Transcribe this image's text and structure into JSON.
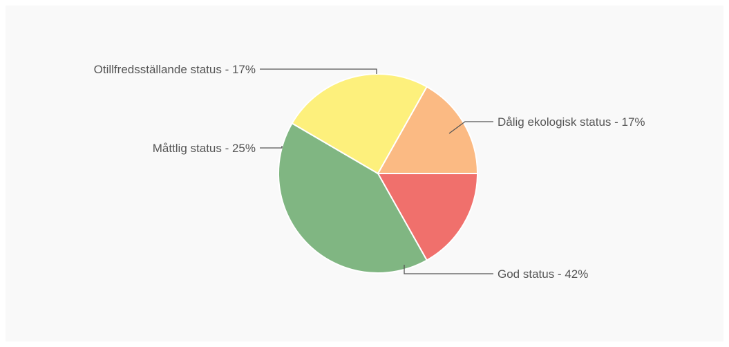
{
  "chart_data": {
    "type": "pie",
    "title": "",
    "slices": [
      {
        "label": "Dålig ekologisk status",
        "value": 17,
        "display": "Dålig ekologisk status - 17%",
        "color": "#f0706c"
      },
      {
        "label": "God status",
        "value": 42,
        "display": "God status - 42%",
        "color": "#80b682"
      },
      {
        "label": "Måttlig status",
        "value": 25,
        "display": "Måttlig status  - 25%",
        "color": "#fdf07c"
      },
      {
        "label": "Otillfredsställande status",
        "value": 17,
        "display": "Otillfredsställande status  - 17%",
        "color": "#fbba83"
      }
    ],
    "start_angle_deg": 0,
    "direction": "clockwise",
    "labels_outside_with_leader_lines": true
  }
}
